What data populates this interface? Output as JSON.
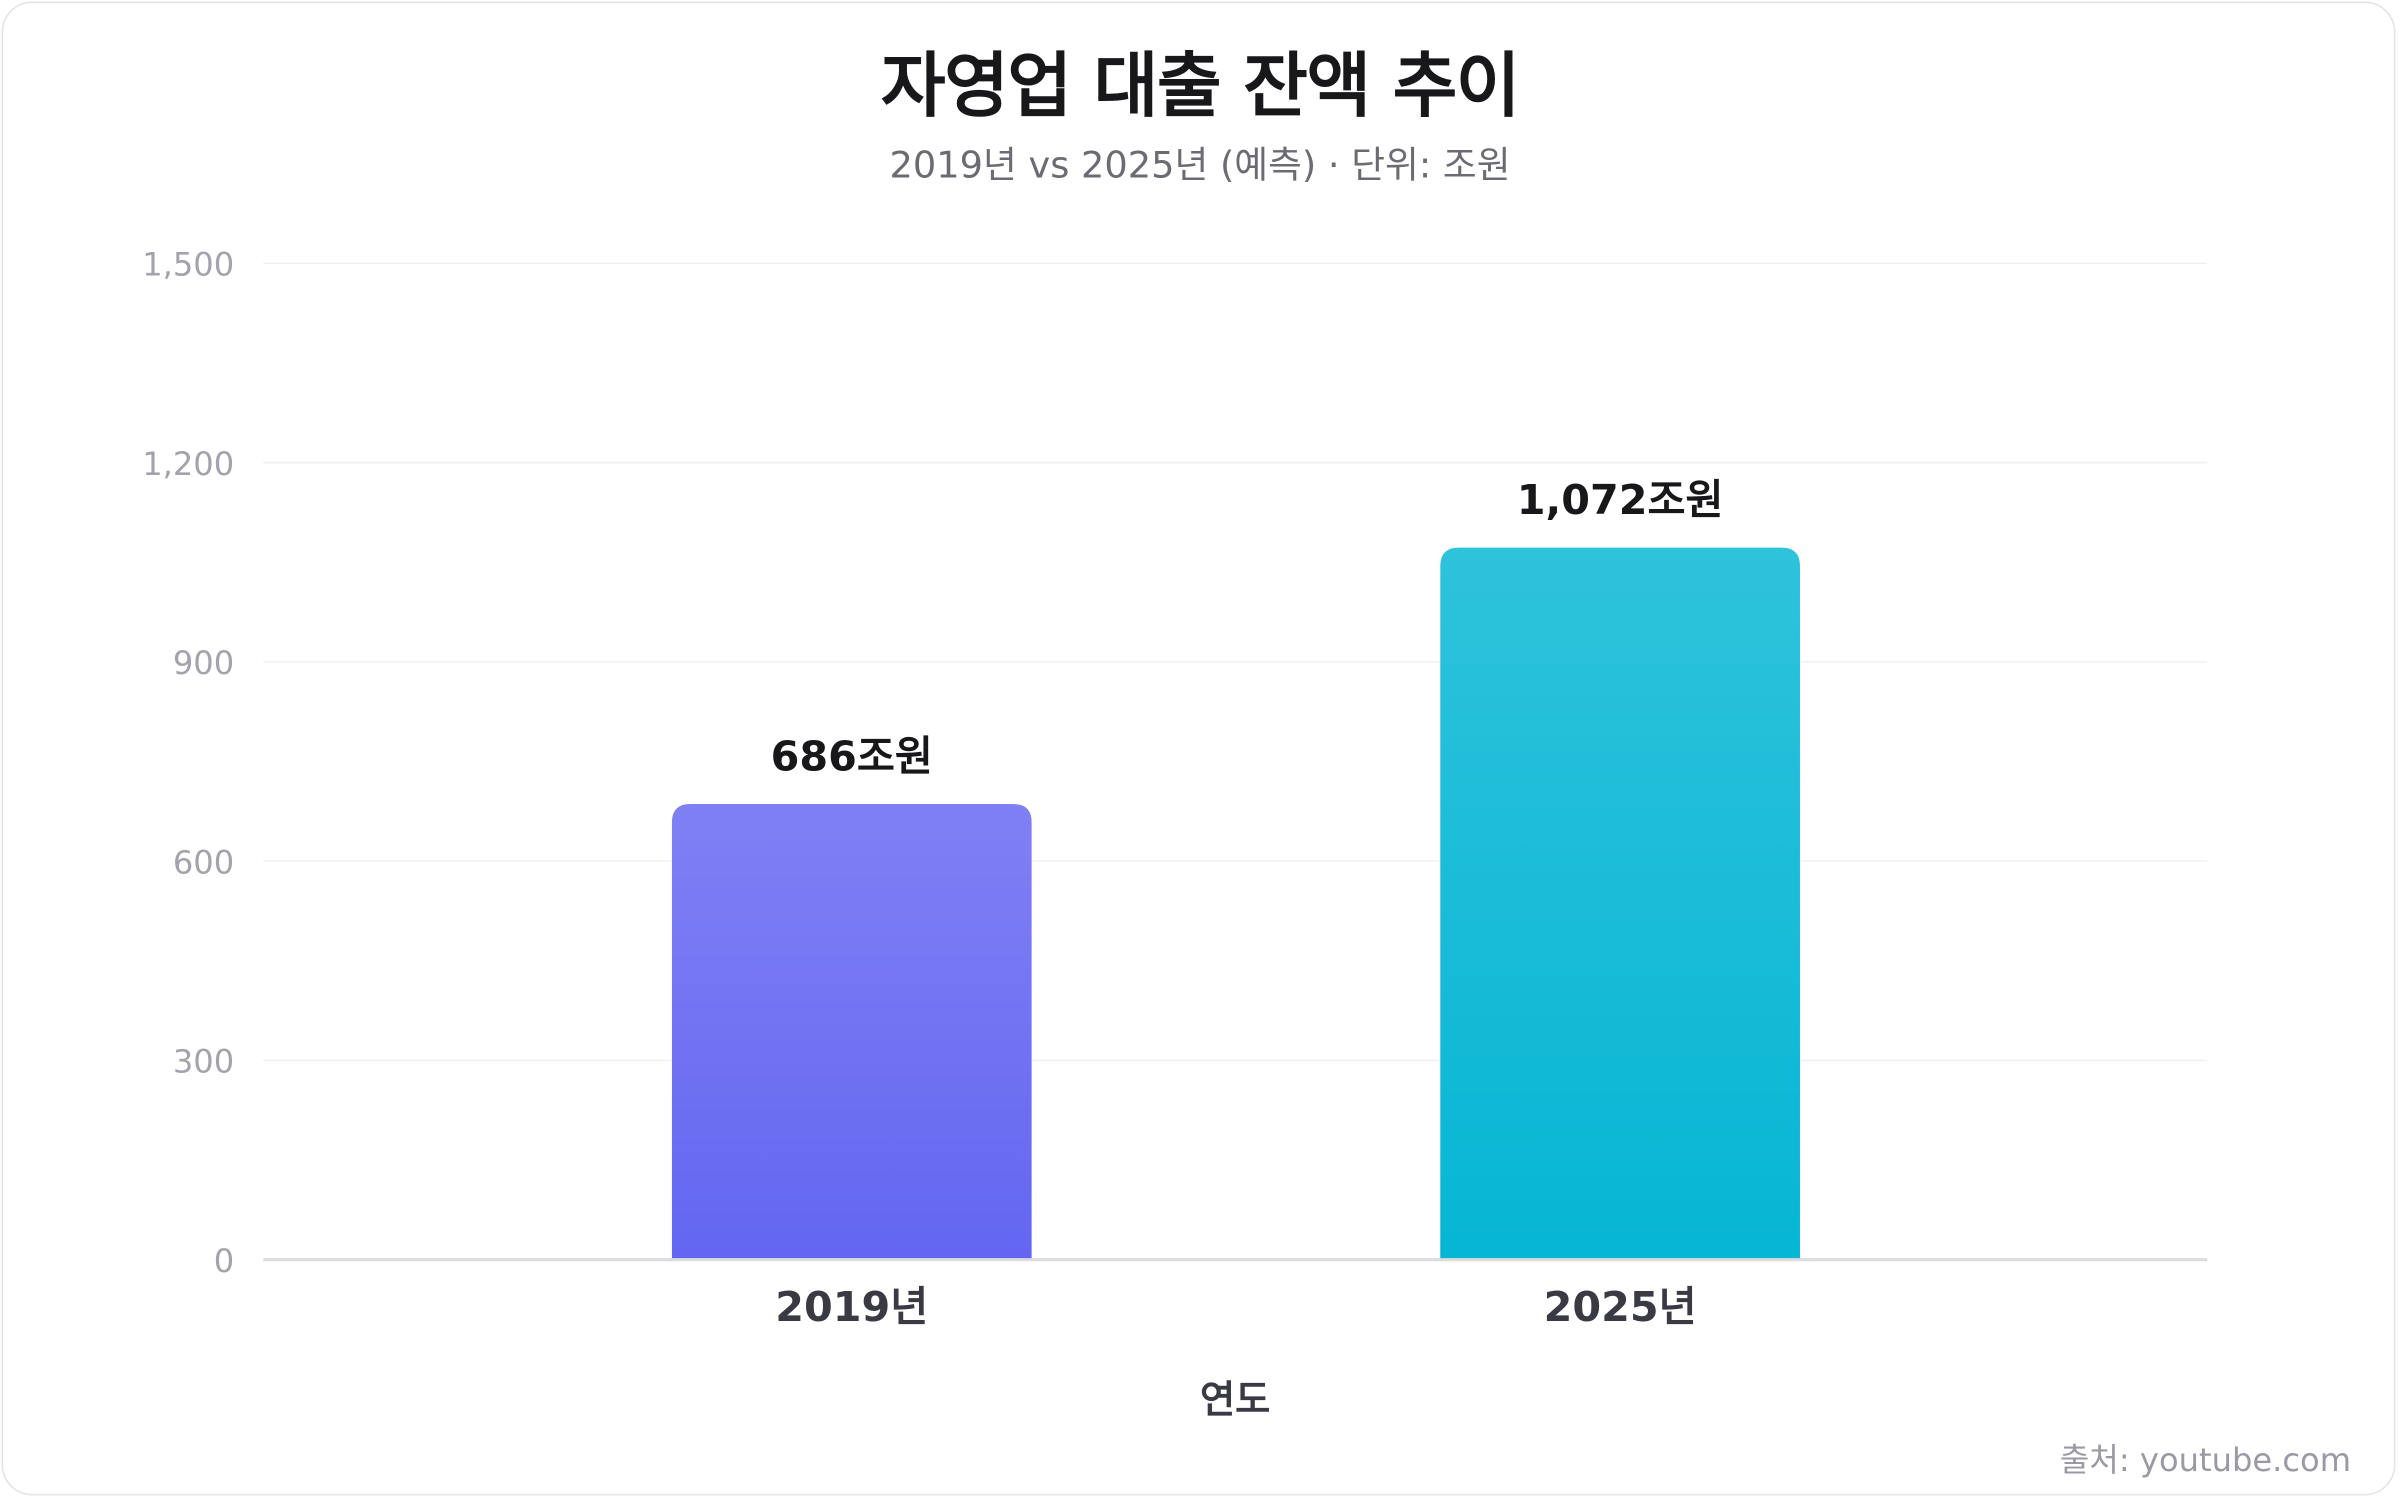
{
  "chart_data": {
    "type": "bar",
    "title": "자영업 대출 잔액 추이",
    "subtitle": "2019년 vs 2025년 (예측) · 단위: 조원",
    "categories": [
      "2019년",
      "2025년"
    ],
    "values": [
      686,
      1072
    ],
    "data_labels": [
      "686조원",
      "1,072조원"
    ],
    "xlabel": "연도",
    "ylabel": "",
    "ylim": [
      0,
      1500
    ],
    "yticks": [
      0,
      300,
      600,
      900,
      1200,
      1500
    ],
    "ytick_labels": [
      "0",
      "300",
      "600",
      "900",
      "1,200",
      "1,500"
    ],
    "grid": true,
    "colors": [
      [
        "#8080f5",
        "#6366f1"
      ],
      [
        "#2ec2db",
        "#06b6d4"
      ]
    ],
    "source": "출처: youtube.com"
  }
}
